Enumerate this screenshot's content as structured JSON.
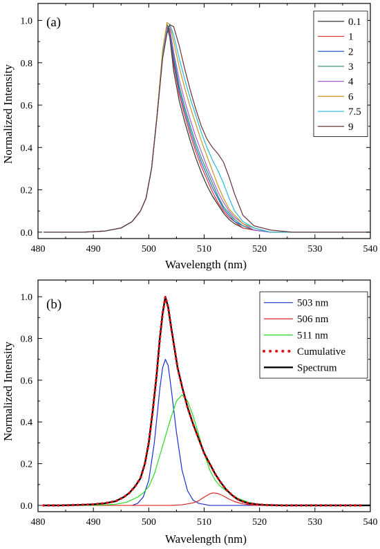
{
  "chart_data": [
    {
      "type": "line",
      "panel_label": "(a)",
      "xlabel": "Wavelength (nm)",
      "ylabel": "Normalized Intensity",
      "xlim": [
        480,
        540
      ],
      "ylim": [
        -0.03,
        1.08
      ],
      "xticks": [
        480,
        490,
        500,
        510,
        520,
        530,
        540
      ],
      "xtick_labels": [
        "480",
        "490",
        "500",
        "510",
        "520",
        "530",
        "540"
      ],
      "yticks": [
        0,
        0.2,
        0.4,
        0.6,
        0.8,
        1.0
      ],
      "ytick_labels": [
        "0.0",
        "0.2",
        "0.4",
        "0.6",
        "0.8",
        "1.0"
      ],
      "grid": false,
      "legend_position": "top-right",
      "series": [
        {
          "name": "0.1",
          "color": "#333333",
          "x": [
            481,
            484,
            488,
            492,
            495,
            497,
            498.5,
            499.5,
            500.5,
            501.5,
            502.5,
            503.3,
            503.8,
            504.5,
            505.5,
            506.5,
            507.5,
            508.5,
            509.5,
            510.5,
            511.5,
            512.5,
            513.5,
            514.5,
            515.5,
            517,
            519,
            522,
            526,
            540
          ],
          "y": [
            0,
            0,
            0,
            0.005,
            0.02,
            0.05,
            0.1,
            0.16,
            0.3,
            0.55,
            0.84,
            0.97,
            0.92,
            0.76,
            0.62,
            0.52,
            0.43,
            0.35,
            0.28,
            0.22,
            0.17,
            0.13,
            0.09,
            0.06,
            0.04,
            0.02,
            0.01,
            0,
            0,
            0
          ]
        },
        {
          "name": "1",
          "color": "#e03030",
          "x": [
            481,
            484,
            488,
            492,
            495,
            497,
            498.5,
            499.5,
            500.5,
            501.5,
            502.5,
            503.3,
            503.8,
            504.5,
            505.5,
            506.5,
            507.5,
            508.5,
            509.5,
            510.5,
            511.5,
            512.5,
            513.5,
            514.5,
            515.5,
            517,
            519,
            522,
            526,
            540
          ],
          "y": [
            0,
            0,
            0,
            0.005,
            0.02,
            0.05,
            0.1,
            0.16,
            0.3,
            0.55,
            0.85,
            0.98,
            0.94,
            0.79,
            0.65,
            0.55,
            0.46,
            0.38,
            0.31,
            0.25,
            0.19,
            0.14,
            0.1,
            0.07,
            0.05,
            0.02,
            0.01,
            0,
            0,
            0
          ]
        },
        {
          "name": "2",
          "color": "#2060d0",
          "x": [
            481,
            484,
            488,
            492,
            495,
            497,
            498.5,
            499.5,
            500.5,
            501.5,
            502.5,
            503.3,
            503.8,
            504.5,
            505.5,
            506.5,
            507.5,
            508.5,
            509.5,
            510.5,
            511.5,
            512.5,
            513.5,
            514.5,
            515.5,
            517,
            519,
            522,
            526,
            540
          ],
          "y": [
            0,
            0,
            0,
            0.005,
            0.02,
            0.05,
            0.1,
            0.16,
            0.3,
            0.55,
            0.85,
            0.98,
            0.95,
            0.81,
            0.67,
            0.57,
            0.48,
            0.4,
            0.33,
            0.27,
            0.21,
            0.16,
            0.11,
            0.08,
            0.05,
            0.03,
            0.01,
            0,
            0,
            0
          ]
        },
        {
          "name": "3",
          "color": "#2a8a6a",
          "x": [
            481,
            484,
            488,
            492,
            495,
            497,
            498.5,
            499.5,
            500.5,
            501.5,
            502.5,
            503.3,
            503.8,
            504.5,
            505.5,
            506.5,
            507.5,
            508.5,
            509.5,
            510.5,
            511.5,
            512.5,
            513.5,
            514.5,
            515.5,
            517,
            519,
            522,
            526,
            540
          ],
          "y": [
            0,
            0,
            0,
            0.005,
            0.02,
            0.05,
            0.1,
            0.16,
            0.3,
            0.55,
            0.85,
            0.98,
            0.96,
            0.83,
            0.69,
            0.59,
            0.5,
            0.42,
            0.35,
            0.29,
            0.23,
            0.17,
            0.12,
            0.09,
            0.06,
            0.03,
            0.01,
            0,
            0,
            0
          ]
        },
        {
          "name": "4",
          "color": "#a060d8",
          "x": [
            481,
            484,
            488,
            492,
            495,
            497,
            498.5,
            499.5,
            500.5,
            501.5,
            502.5,
            503.3,
            503.8,
            504.5,
            505.5,
            506.5,
            507.5,
            508.5,
            509.5,
            510.5,
            511.5,
            512.5,
            513.5,
            514.5,
            515.5,
            517,
            519,
            522,
            526,
            540
          ],
          "y": [
            0,
            0,
            0,
            0.005,
            0.02,
            0.05,
            0.1,
            0.16,
            0.3,
            0.55,
            0.84,
            0.97,
            0.96,
            0.85,
            0.72,
            0.62,
            0.53,
            0.45,
            0.38,
            0.31,
            0.25,
            0.19,
            0.14,
            0.1,
            0.07,
            0.04,
            0.01,
            0,
            0,
            0
          ]
        },
        {
          "name": "6",
          "color": "#c8961e",
          "x": [
            481,
            484,
            488,
            492,
            495,
            497,
            498.5,
            499.5,
            500.5,
            501.5,
            502.5,
            503.3,
            503.8,
            504.5,
            505.5,
            506.5,
            507.5,
            508.5,
            509.5,
            510.5,
            511.5,
            512.5,
            513.5,
            514.5,
            515.5,
            517,
            519,
            522,
            526,
            540
          ],
          "y": [
            0,
            0,
            0,
            0.005,
            0.02,
            0.05,
            0.1,
            0.16,
            0.3,
            0.56,
            0.86,
            0.99,
            0.98,
            0.9,
            0.78,
            0.68,
            0.59,
            0.51,
            0.43,
            0.36,
            0.29,
            0.22,
            0.16,
            0.11,
            0.08,
            0.04,
            0.02,
            0,
            0,
            0
          ]
        },
        {
          "name": "7.5",
          "color": "#20b8d8",
          "x": [
            481,
            484,
            488,
            492,
            495,
            497,
            498.5,
            499.5,
            500.5,
            501.5,
            502.5,
            503.3,
            503.8,
            504.5,
            505.5,
            506.5,
            507.5,
            508.5,
            509.5,
            510.5,
            511.5,
            512.5,
            513.5,
            514.5,
            515.5,
            517,
            519,
            522,
            526,
            540
          ],
          "y": [
            0,
            0,
            0,
            0.005,
            0.02,
            0.05,
            0.1,
            0.16,
            0.3,
            0.55,
            0.83,
            0.95,
            0.98,
            0.93,
            0.82,
            0.72,
            0.63,
            0.55,
            0.47,
            0.4,
            0.34,
            0.29,
            0.23,
            0.16,
            0.1,
            0.05,
            0.02,
            0,
            0,
            0
          ]
        },
        {
          "name": "9",
          "color": "#6a3038",
          "x": [
            481,
            484,
            488,
            492,
            495,
            497,
            498.5,
            499.5,
            500.5,
            501.5,
            502.5,
            503.3,
            503.8,
            504.5,
            505.5,
            506.5,
            507.5,
            508.5,
            509.5,
            510.5,
            511.5,
            512.5,
            513.5,
            514.5,
            515.5,
            517,
            519,
            522,
            526,
            540
          ],
          "y": [
            0,
            0,
            0,
            0.005,
            0.02,
            0.05,
            0.1,
            0.16,
            0.3,
            0.55,
            0.82,
            0.94,
            0.98,
            0.97,
            0.88,
            0.77,
            0.67,
            0.58,
            0.5,
            0.44,
            0.4,
            0.37,
            0.33,
            0.26,
            0.18,
            0.08,
            0.03,
            0.01,
            0,
            0
          ]
        }
      ]
    },
    {
      "type": "line",
      "panel_label": "(b)",
      "xlabel": "Wavelength (nm)",
      "ylabel": "Normalized Intensity",
      "xlim": [
        480,
        540
      ],
      "ylim": [
        -0.03,
        1.08
      ],
      "xticks": [
        480,
        490,
        500,
        510,
        520,
        530,
        540
      ],
      "xtick_labels": [
        "480",
        "490",
        "500",
        "510",
        "520",
        "530",
        "540"
      ],
      "yticks": [
        0,
        0.2,
        0.4,
        0.6,
        0.8,
        1.0
      ],
      "ytick_labels": [
        "0.0",
        "0.2",
        "0.4",
        "0.6",
        "0.8",
        "1.0"
      ],
      "grid": false,
      "legend_position": "top-right",
      "series": [
        {
          "name": "503 nm",
          "color": "#1a2fd0",
          "style": "thin",
          "x": [
            497,
            498,
            499,
            500,
            501,
            502,
            502.5,
            503,
            503.5,
            504,
            505,
            506,
            507,
            508,
            509,
            510,
            511,
            513,
            540
          ],
          "y": [
            0,
            0.01,
            0.04,
            0.12,
            0.3,
            0.56,
            0.66,
            0.7,
            0.67,
            0.57,
            0.35,
            0.17,
            0.07,
            0.025,
            0.01,
            0.005,
            0,
            0,
            0
          ]
        },
        {
          "name": "506 nm",
          "color": "#e02020",
          "style": "thin",
          "x": [
            481,
            500,
            504,
            506,
            508,
            509,
            510,
            511,
            511.6,
            512.5,
            513.5,
            514.5,
            515.5,
            517,
            519,
            540
          ],
          "y": [
            0,
            0,
            0,
            0.003,
            0.012,
            0.022,
            0.04,
            0.055,
            0.06,
            0.057,
            0.045,
            0.03,
            0.018,
            0.007,
            0,
            0
          ]
        },
        {
          "name": "511 nm",
          "color": "#22dd22",
          "style": "thin",
          "x": [
            481,
            490,
            494,
            496,
            498,
            499,
            500,
            501,
            502,
            503,
            504,
            505,
            506,
            507,
            508,
            509,
            510,
            511,
            512,
            513,
            514,
            515,
            516,
            517,
            518,
            519,
            520,
            522,
            525,
            540
          ],
          "y": [
            0,
            0,
            0.005,
            0.015,
            0.04,
            0.06,
            0.09,
            0.15,
            0.24,
            0.33,
            0.42,
            0.5,
            0.53,
            0.5,
            0.43,
            0.34,
            0.25,
            0.17,
            0.12,
            0.09,
            0.07,
            0.05,
            0.035,
            0.025,
            0.015,
            0.01,
            0.005,
            0,
            0,
            0
          ]
        },
        {
          "name": "Cumulative",
          "color": "#dd1111",
          "style": "dots",
          "x": [
            481,
            484,
            487,
            490,
            492,
            494,
            495.5,
            496.5,
            497.5,
            498.5,
            499.3,
            500,
            500.7,
            501.4,
            502,
            502.5,
            503,
            503.5,
            504,
            504.6,
            505.2,
            506,
            507,
            508,
            509,
            510,
            511,
            512,
            513,
            514,
            515,
            516,
            517,
            518,
            519.5,
            521,
            524,
            527,
            530,
            533,
            536,
            539
          ],
          "y": [
            0,
            0,
            0.002,
            0.005,
            0.01,
            0.02,
            0.04,
            0.06,
            0.09,
            0.13,
            0.2,
            0.3,
            0.45,
            0.62,
            0.8,
            0.92,
            1.0,
            0.95,
            0.86,
            0.76,
            0.66,
            0.57,
            0.47,
            0.39,
            0.32,
            0.25,
            0.2,
            0.15,
            0.11,
            0.075,
            0.05,
            0.03,
            0.018,
            0.01,
            0.005,
            0.002,
            0,
            0,
            0,
            0,
            0,
            0
          ]
        },
        {
          "name": "Spectrum",
          "color": "#000000",
          "style": "thick",
          "x": [
            481,
            484,
            487,
            490,
            492,
            494,
            495.5,
            496.5,
            497.5,
            498.5,
            499.3,
            500,
            500.7,
            501.4,
            502,
            502.5,
            503,
            503.5,
            504,
            504.6,
            505.2,
            506,
            507,
            508,
            509,
            510,
            511,
            512,
            513,
            514,
            515,
            516,
            517,
            518,
            519.5,
            521,
            524,
            527,
            530,
            533,
            536,
            540
          ],
          "y": [
            0,
            0,
            0.002,
            0.005,
            0.01,
            0.02,
            0.04,
            0.06,
            0.09,
            0.13,
            0.2,
            0.3,
            0.45,
            0.62,
            0.8,
            0.92,
            1.0,
            0.95,
            0.86,
            0.76,
            0.66,
            0.57,
            0.47,
            0.39,
            0.32,
            0.25,
            0.2,
            0.15,
            0.11,
            0.075,
            0.05,
            0.03,
            0.018,
            0.01,
            0.005,
            0.002,
            0,
            0,
            0,
            0,
            0,
            0
          ]
        }
      ]
    }
  ]
}
